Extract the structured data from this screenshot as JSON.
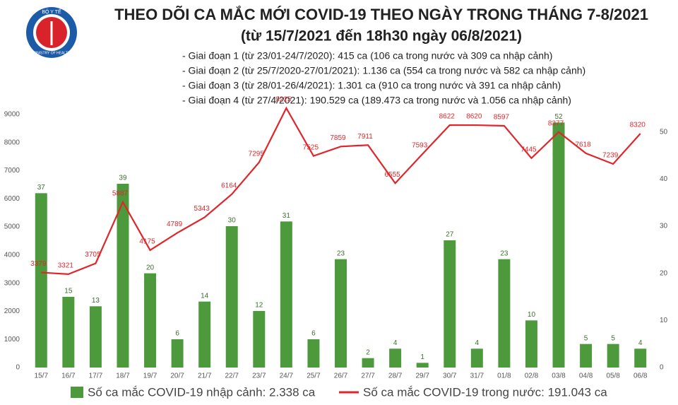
{
  "logo_text": [
    "BỘ Y TẾ",
    "MINISTRY OF HEALTH"
  ],
  "chart_data": {
    "type": "bar-line",
    "title": "THEO DÕI CA MẮC MỚI COVID-19 THEO NGÀY TRONG THÁNG 7-8/2021",
    "subtitle": "(từ 15/7/2021 đến 18h30 ngày 06/8/2021)",
    "annotations": [
      "- Giai đoạn 1 (từ 23/01-24/7/2020): 415 ca (106 ca trong nước và 309 ca nhập cảnh)",
      "- Giai đoạn 2 (từ 25/7/2020-27/01/2021): 1.136 ca (554 ca trong nước và 582 ca nhập cảnh)",
      "- Giai đoạn 3 (từ 28/01-26/4/2021): 1.301 ca (910 ca trong nước và 391 ca nhập cảnh)",
      "- Giai đoạn 4 (từ 27/4/2021): 190.529 ca (189.473 ca trong nước và 1.056 ca nhập cảnh)"
    ],
    "categories": [
      "15/7",
      "16/7",
      "17/7",
      "18/7",
      "19/7",
      "20/7",
      "21/7",
      "22/7",
      "23/7",
      "24/7",
      "25/7",
      "26/7",
      "27/7",
      "28/7",
      "29/7",
      "30/7",
      "31/7",
      "01/8",
      "02/8",
      "03/8",
      "04/8",
      "05/8",
      "06/8"
    ],
    "series": [
      {
        "name": "Số ca mắc COVID-19 nhập cảnh: 2.338 ca",
        "color": "#4c9a3c",
        "kind": "bar",
        "axis": "y2",
        "values": [
          37,
          15,
          13,
          39,
          20,
          6,
          14,
          30,
          12,
          31,
          6,
          23,
          2,
          4,
          1,
          27,
          4,
          23,
          10,
          52,
          5,
          5,
          4
        ]
      },
      {
        "name": "Số ca mắc COVID-19 trong nước: 191.043 ca",
        "color": "#e0262a",
        "kind": "line",
        "values": [
          3379,
          3321,
          3705,
          5887,
          4175,
          4789,
          5343,
          6164,
          7295,
          9225,
          7525,
          7859,
          7911,
          6555,
          7593,
          8622,
          8620,
          8597,
          7445,
          8377,
          7618,
          7239,
          8320
        ]
      }
    ],
    "ylim": [
      0,
      9300
    ],
    "yticks": [
      0,
      1000,
      2000,
      3000,
      4000,
      5000,
      6000,
      7000,
      8000,
      9000
    ],
    "y2lim": [
      0,
      55.5
    ],
    "y2ticks": [
      0,
      10,
      20,
      30,
      40,
      50
    ]
  }
}
